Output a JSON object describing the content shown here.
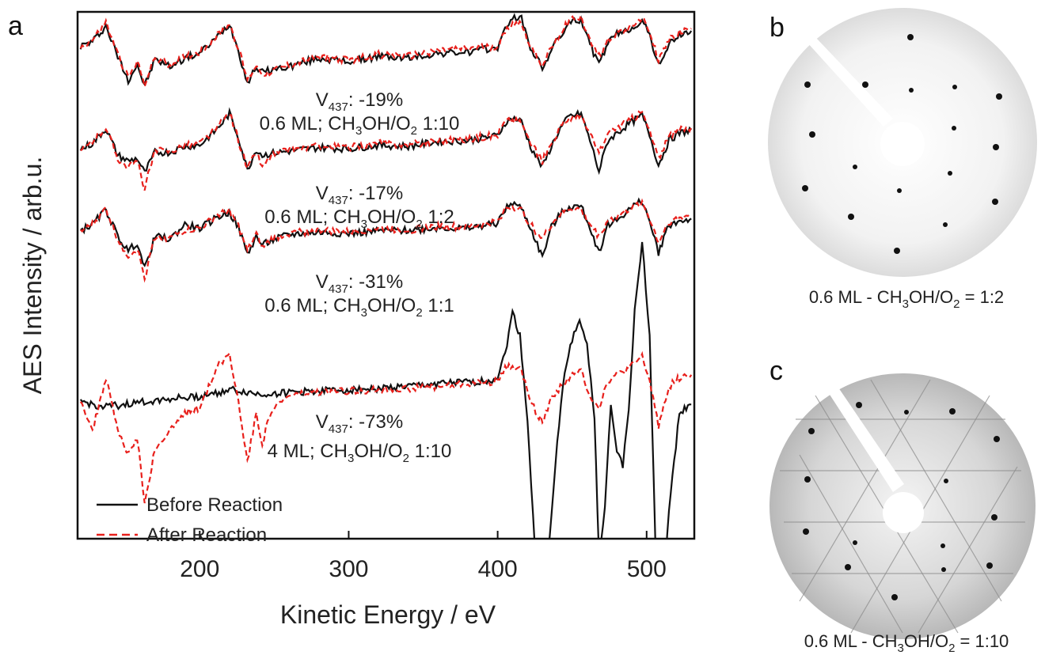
{
  "panel_labels": {
    "a": "a",
    "b": "b",
    "c": "c"
  },
  "colors": {
    "before": "#111111",
    "after": "#e8201c",
    "axes": "#111111"
  },
  "captions": {
    "b": {
      "prefix": "0.6 ML - CH",
      "sub1": "3",
      "mid": "OH/O",
      "sub2": "2",
      "suffix": " = 1:2"
    },
    "c": {
      "prefix": "0.6 ML - CH",
      "sub1": "3",
      "mid": "OH/O",
      "sub2": "2",
      "suffix": " = 1:10"
    }
  },
  "leed_images": [
    {
      "panel": "b",
      "background": "light-gray",
      "pattern": "hexagonal-spots"
    },
    {
      "panel": "c",
      "background": "gray",
      "pattern": "hexagonal-spots-with-streaks"
    }
  ],
  "chart_data": {
    "type": "line",
    "xlabel": "Kinetic Energy / eV",
    "ylabel": "AES Intensity / arb.u.",
    "xlim": [
      118,
      532
    ],
    "xticks": [
      200,
      300,
      400,
      500
    ],
    "yticks_shown": false,
    "legend": {
      "placement": "bottom-left",
      "entries": [
        {
          "label": "Before Reaction",
          "style": "solid",
          "color": "#111111"
        },
        {
          "label": "After Reaction",
          "style": "dashed",
          "color": "#e8201c"
        }
      ]
    },
    "spectra": [
      {
        "annotation": {
          "v_prefix": "V",
          "v_sub": "437",
          "v_value": ": -19%",
          "cond_prefix": "0.6 ML; CH",
          "cond_sub1": "3",
          "cond_mid": "OH/O",
          "cond_sub2": "2",
          "cond_suffix": " 1:10"
        },
        "series": [
          {
            "name": "Before Reaction",
            "x": [
              120,
              128,
              137,
              145,
              152,
              158,
              163,
              170,
              180,
              190,
              200,
              212,
              220,
              226,
              232,
              238,
              242,
              248,
              260,
              280,
              300,
              320,
              340,
              360,
              380,
              400,
              405,
              410,
              416,
              422,
              430,
              436,
              442,
              448,
              456,
              462,
              468,
              474,
              480,
              488,
              497,
              502,
              508,
              515,
              522,
              530
            ],
            "y": [
              0.62,
              0.7,
              0.96,
              0.45,
              0.05,
              0.32,
              -0.05,
              0.4,
              0.28,
              0.42,
              0.5,
              0.78,
              1.0,
              0.55,
              0.0,
              0.28,
              0.18,
              0.22,
              0.28,
              0.42,
              0.36,
              0.45,
              0.42,
              0.5,
              0.52,
              0.6,
              0.9,
              1.12,
              1.08,
              0.6,
              0.25,
              0.55,
              0.8,
              1.0,
              1.08,
              0.65,
              0.3,
              0.68,
              0.82,
              0.9,
              1.05,
              0.8,
              0.3,
              0.65,
              0.8,
              0.88
            ]
          },
          {
            "name": "After Reaction",
            "x": [
              120,
              128,
              137,
              145,
              152,
              158,
              163,
              170,
              180,
              190,
              200,
              212,
              220,
              226,
              232,
              238,
              242,
              248,
              260,
              280,
              300,
              320,
              340,
              360,
              380,
              400,
              405,
              410,
              416,
              422,
              430,
              436,
              442,
              448,
              456,
              462,
              468,
              474,
              480,
              488,
              497,
              502,
              508,
              515,
              522,
              530
            ],
            "y": [
              0.6,
              0.72,
              1.02,
              0.48,
              0.08,
              0.35,
              0.0,
              0.42,
              0.3,
              0.45,
              0.52,
              0.8,
              1.0,
              0.58,
              0.05,
              0.3,
              0.15,
              0.2,
              0.3,
              0.45,
              0.38,
              0.48,
              0.45,
              0.55,
              0.58,
              0.62,
              0.85,
              1.02,
              1.0,
              0.62,
              0.3,
              0.58,
              0.85,
              1.05,
              1.12,
              0.7,
              0.45,
              0.72,
              0.85,
              0.92,
              1.12,
              0.85,
              0.38,
              0.72,
              0.85,
              0.92
            ]
          }
        ]
      },
      {
        "annotation": {
          "v_prefix": "V",
          "v_sub": "437",
          "v_value": ": -17%",
          "cond_prefix": "0.6 ML; CH",
          "cond_sub1": "3",
          "cond_mid": "OH/O",
          "cond_sub2": "2",
          "cond_suffix": " 1:2"
        },
        "series": [
          {
            "name": "Before Reaction",
            "x": [
              120,
              128,
              137,
              145,
              152,
              158,
              163,
              170,
              180,
              190,
              200,
              212,
              220,
              226,
              232,
              238,
              242,
              248,
              260,
              280,
              300,
              320,
              340,
              360,
              380,
              400,
              405,
              410,
              416,
              422,
              430,
              436,
              442,
              448,
              456,
              462,
              468,
              474,
              480,
              488,
              497,
              502,
              508,
              515,
              522,
              530
            ],
            "y": [
              0.35,
              0.45,
              0.7,
              0.25,
              0.15,
              0.2,
              -0.05,
              0.3,
              0.3,
              0.4,
              0.42,
              0.7,
              0.95,
              0.55,
              0.0,
              0.35,
              0.25,
              0.28,
              0.32,
              0.38,
              0.36,
              0.42,
              0.4,
              0.48,
              0.5,
              0.58,
              0.8,
              0.88,
              0.82,
              0.4,
              0.05,
              0.4,
              0.7,
              0.9,
              0.95,
              0.5,
              -0.02,
              0.5,
              0.62,
              0.78,
              0.92,
              0.6,
              0.08,
              0.5,
              0.62,
              0.68
            ]
          },
          {
            "name": "After Reaction",
            "x": [
              120,
              128,
              137,
              145,
              152,
              158,
              163,
              170,
              180,
              190,
              200,
              212,
              220,
              226,
              232,
              238,
              242,
              248,
              260,
              280,
              300,
              320,
              340,
              360,
              380,
              400,
              405,
              410,
              416,
              422,
              430,
              436,
              442,
              448,
              456,
              462,
              468,
              474,
              480,
              488,
              497,
              502,
              508,
              515,
              522,
              530
            ],
            "y": [
              0.32,
              0.48,
              0.72,
              0.2,
              0.05,
              0.15,
              -0.3,
              0.32,
              0.32,
              0.42,
              0.45,
              0.72,
              0.98,
              0.5,
              0.02,
              0.3,
              0.05,
              0.25,
              0.34,
              0.4,
              0.38,
              0.45,
              0.42,
              0.5,
              0.52,
              0.6,
              0.82,
              0.85,
              0.8,
              0.45,
              0.15,
              0.45,
              0.72,
              0.88,
              0.9,
              0.6,
              0.3,
              0.6,
              0.72,
              0.82,
              0.98,
              0.65,
              0.2,
              0.55,
              0.68,
              0.72
            ]
          }
        ]
      },
      {
        "annotation": {
          "v_prefix": "V",
          "v_sub": "437",
          "v_value": ": -31%",
          "cond_prefix": "0.6 ML; CH",
          "cond_sub1": "3",
          "cond_mid": "OH/O",
          "cond_sub2": "2",
          "cond_suffix": " 1:1"
        },
        "series": [
          {
            "name": "Before Reaction",
            "x": [
              120,
              128,
              137,
              145,
              152,
              158,
              163,
              170,
              180,
              190,
              200,
              212,
              220,
              226,
              232,
              238,
              242,
              248,
              260,
              280,
              300,
              320,
              340,
              360,
              380,
              400,
              405,
              410,
              416,
              422,
              430,
              436,
              442,
              448,
              456,
              462,
              468,
              474,
              480,
              488,
              497,
              502,
              508,
              515,
              522,
              530
            ],
            "y": [
              0.45,
              0.55,
              0.8,
              0.35,
              0.1,
              0.25,
              -0.2,
              0.35,
              0.3,
              0.55,
              0.48,
              0.68,
              0.75,
              0.5,
              0.05,
              0.35,
              0.2,
              0.28,
              0.38,
              0.42,
              0.4,
              0.44,
              0.45,
              0.5,
              0.48,
              0.58,
              0.8,
              0.92,
              0.82,
              0.5,
              0.0,
              0.5,
              0.72,
              0.85,
              0.85,
              0.5,
              0.08,
              0.55,
              0.62,
              0.8,
              0.95,
              0.6,
              0.08,
              0.55,
              0.6,
              0.65
            ]
          },
          {
            "name": "After Reaction",
            "x": [
              120,
              128,
              137,
              145,
              152,
              158,
              163,
              170,
              180,
              190,
              200,
              212,
              220,
              226,
              232,
              238,
              242,
              248,
              260,
              280,
              300,
              320,
              340,
              360,
              380,
              400,
              405,
              410,
              416,
              422,
              430,
              436,
              442,
              448,
              456,
              462,
              468,
              474,
              480,
              488,
              497,
              502,
              508,
              515,
              522,
              530
            ],
            "y": [
              0.42,
              0.55,
              0.82,
              0.3,
              0.02,
              0.15,
              -0.35,
              0.35,
              0.32,
              0.45,
              0.48,
              0.7,
              0.78,
              0.52,
              0.1,
              0.38,
              0.15,
              0.3,
              0.4,
              0.45,
              0.42,
              0.48,
              0.46,
              0.52,
              0.5,
              0.6,
              0.82,
              0.85,
              0.78,
              0.55,
              0.3,
              0.55,
              0.72,
              0.82,
              0.8,
              0.55,
              0.35,
              0.62,
              0.68,
              0.8,
              0.92,
              0.65,
              0.25,
              0.6,
              0.65,
              0.72
            ]
          }
        ]
      },
      {
        "annotation": {
          "v_prefix": "V",
          "v_sub": "437",
          "v_value": ": -73%",
          "cond_prefix": "4 ML; CH",
          "cond_sub1": "3",
          "cond_mid": "OH/O",
          "cond_sub2": "2",
          "cond_suffix": " 1:10"
        },
        "series": [
          {
            "name": "Before Reaction",
            "x": [
              120,
              135,
              150,
              165,
              180,
              200,
              220,
              240,
              260,
              280,
              300,
              320,
              340,
              360,
              380,
              395,
              400,
              405,
              410,
              415,
              420,
              425,
              430,
              435,
              440,
              445,
              450,
              455,
              460,
              465,
              468,
              472,
              476,
              480,
              484,
              488,
              492,
              497,
              502,
              506,
              510,
              515,
              522,
              530
            ],
            "y": [
              0.3,
              0.2,
              0.25,
              0.3,
              0.35,
              0.38,
              0.5,
              0.42,
              0.45,
              0.48,
              0.5,
              0.52,
              0.55,
              0.6,
              0.62,
              0.65,
              0.72,
              1.1,
              1.8,
              1.4,
              0.0,
              -2.2,
              -3.25,
              -2.0,
              -0.4,
              0.8,
              1.35,
              1.65,
              1.3,
              0.0,
              -2.3,
              -1.5,
              0.3,
              -0.5,
              -0.8,
              0.2,
              1.8,
              3.0,
              1.4,
              -2.2,
              -3.55,
              -1.5,
              0.1,
              0.25
            ]
          },
          {
            "name": "After Reaction",
            "x": [
              120,
              128,
              137,
              145,
              152,
              158,
              163,
              170,
              180,
              190,
              200,
              212,
              220,
              226,
              232,
              238,
              242,
              248,
              260,
              280,
              300,
              320,
              340,
              360,
              380,
              395,
              400,
              405,
              410,
              416,
              422,
              430,
              436,
              442,
              448,
              456,
              462,
              468,
              474,
              480,
              488,
              497,
              502,
              508,
              515,
              522,
              530
            ],
            "y": [
              0.35,
              -0.2,
              0.7,
              -0.2,
              -0.6,
              -0.3,
              -1.4,
              -0.5,
              -0.2,
              0.1,
              0.2,
              0.9,
              1.1,
              0.3,
              -0.7,
              0.1,
              -0.4,
              0.15,
              0.4,
              0.45,
              0.48,
              0.5,
              0.52,
              0.55,
              0.6,
              0.62,
              0.68,
              0.85,
              0.9,
              0.82,
              0.3,
              -0.05,
              0.35,
              0.55,
              0.7,
              0.82,
              0.4,
              0.2,
              0.65,
              0.75,
              0.85,
              1.05,
              0.65,
              -0.1,
              0.55,
              0.7,
              0.75
            ]
          }
        ]
      }
    ]
  }
}
